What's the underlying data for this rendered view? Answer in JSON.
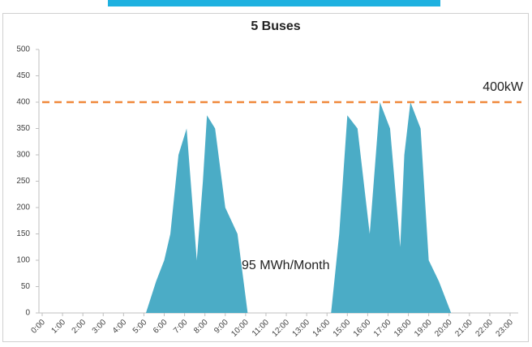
{
  "chart_data": {
    "type": "area",
    "title": "5 Buses",
    "x": [
      0,
      5.1,
      5.6,
      6.0,
      6.3,
      6.7,
      7.1,
      7.6,
      7.9,
      8.1,
      8.5,
      9.0,
      9.3,
      9.6,
      10.1,
      14.2,
      14.6,
      15.0,
      15.5,
      16.1,
      16.3,
      16.6,
      17.1,
      17.6,
      17.8,
      18.1,
      18.6,
      19.0,
      19.5,
      20.1,
      23
    ],
    "values": [
      0,
      0,
      60,
      100,
      150,
      300,
      350,
      100,
      250,
      375,
      350,
      200,
      175,
      150,
      0,
      0,
      150,
      375,
      350,
      150,
      250,
      400,
      350,
      125,
      300,
      400,
      350,
      100,
      60,
      0,
      0
    ],
    "color": "#4bacc6",
    "xlim": [
      0,
      23
    ],
    "xticks": [
      {
        "value": 0,
        "label": "0:00"
      },
      {
        "value": 1,
        "label": "1:00"
      },
      {
        "value": 2,
        "label": "2:00"
      },
      {
        "value": 3,
        "label": "3:00"
      },
      {
        "value": 4,
        "label": "4:00"
      },
      {
        "value": 5,
        "label": "5:00"
      },
      {
        "value": 6,
        "label": "6:00"
      },
      {
        "value": 7,
        "label": "7:00"
      },
      {
        "value": 8,
        "label": "8:00"
      },
      {
        "value": 9,
        "label": "9:00"
      },
      {
        "value": 10,
        "label": "10:00"
      },
      {
        "value": 11,
        "label": "11:00"
      },
      {
        "value": 12,
        "label": "12:00"
      },
      {
        "value": 13,
        "label": "13:00"
      },
      {
        "value": 14,
        "label": "14:00"
      },
      {
        "value": 15,
        "label": "15:00"
      },
      {
        "value": 16,
        "label": "16:00"
      },
      {
        "value": 17,
        "label": "17:00"
      },
      {
        "value": 18,
        "label": "18:00"
      },
      {
        "value": 19,
        "label": "19:00"
      },
      {
        "value": 20,
        "label": "20:00"
      },
      {
        "value": 21,
        "label": "21:00"
      },
      {
        "value": 22,
        "label": "22:00"
      },
      {
        "value": 23,
        "label": "23:00"
      }
    ],
    "ylim": [
      0,
      500
    ],
    "yticks": [
      0,
      50,
      100,
      150,
      200,
      250,
      300,
      350,
      400,
      450,
      500
    ],
    "reference_line": {
      "value": 400,
      "label": "400kW",
      "color": "#f0883a"
    },
    "annotation": "95 MWh/Month"
  }
}
